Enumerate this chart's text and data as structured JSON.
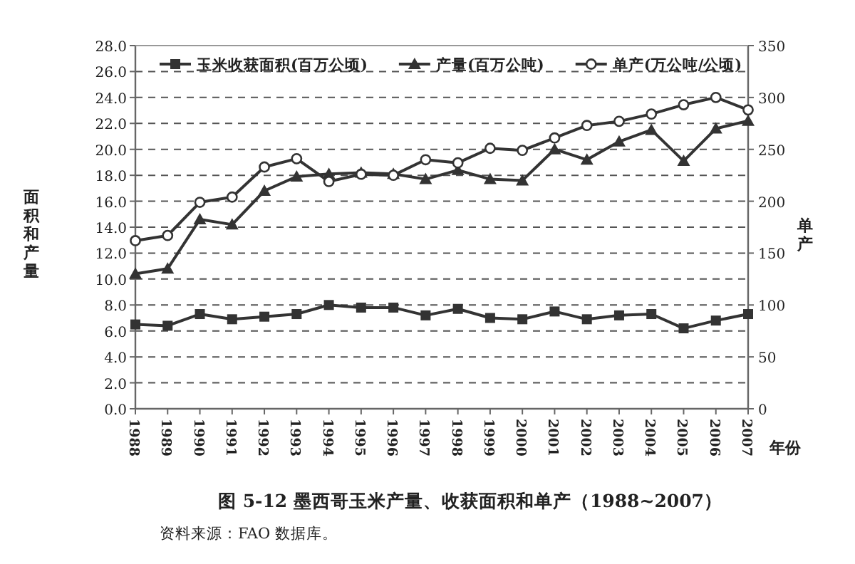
{
  "chart_data": {
    "type": "line",
    "title": "图 5-12 墨西哥玉米产量、收获面积和单产（1988~2007）",
    "ylabel": "面积和产量",
    "y2label": "单产",
    "xlabel": "年份",
    "annotations": [
      "资料来源：FAO 数据库。"
    ],
    "categories": [
      "1988",
      "1989",
      "1990",
      "1991",
      "1992",
      "1993",
      "1994",
      "1995",
      "1996",
      "1997",
      "1998",
      "1999",
      "2000",
      "2001",
      "2002",
      "2003",
      "2004",
      "2005",
      "2006",
      "2007"
    ],
    "series": [
      {
        "name": "玉米收获面积(百万公顷)",
        "color": "#333333",
        "marker": "square",
        "values": [
          6.5,
          6.4,
          7.3,
          6.9,
          7.1,
          7.3,
          8.0,
          7.8,
          7.8,
          7.2,
          7.7,
          7.0,
          6.9,
          7.5,
          6.9,
          7.2,
          7.3,
          6.2,
          6.8,
          7.3
        ]
      },
      {
        "name": "产量(百万公吨)",
        "color": "#333333",
        "marker": "triangle",
        "values": [
          10.4,
          10.8,
          14.6,
          14.2,
          16.8,
          17.9,
          18.1,
          18.2,
          18.1,
          17.7,
          18.4,
          17.7,
          17.6,
          20.0,
          19.2,
          20.6,
          21.5,
          19.1,
          21.6,
          22.2
        ]
      },
      {
        "name": "单产(万公吨/公顷)",
        "color": "#333333",
        "marker": "circle",
        "axis": "y2",
        "values": [
          162,
          167,
          199,
          204,
          233,
          241,
          219,
          226,
          225,
          240,
          237,
          251,
          249,
          261,
          273,
          277,
          284,
          293,
          300,
          288
        ]
      }
    ],
    "ylim": [
      0,
      28
    ],
    "yticks": [
      {
        "value": 0,
        "label": "0.0"
      },
      {
        "value": 2,
        "label": "2.0"
      },
      {
        "value": 4,
        "label": "4.0"
      },
      {
        "value": 6,
        "label": "6.0"
      },
      {
        "value": 8,
        "label": "8.0"
      },
      {
        "value": 10,
        "label": "10.0"
      },
      {
        "value": 12,
        "label": "12.0"
      },
      {
        "value": 14,
        "label": "14.0"
      },
      {
        "value": 16,
        "label": "16.0"
      },
      {
        "value": 18,
        "label": "18.0"
      },
      {
        "value": 20,
        "label": "20.0"
      },
      {
        "value": 22,
        "label": "22.0"
      },
      {
        "value": 24,
        "label": "24.0"
      },
      {
        "value": 26,
        "label": "26.0"
      },
      {
        "value": 28,
        "label": "28.0"
      }
    ],
    "y2lim": [
      0,
      350
    ],
    "y2ticks": [
      0,
      50,
      100,
      150,
      200,
      250,
      300,
      350
    ],
    "grid": "y",
    "legend": "top",
    "line_style": "solid"
  }
}
